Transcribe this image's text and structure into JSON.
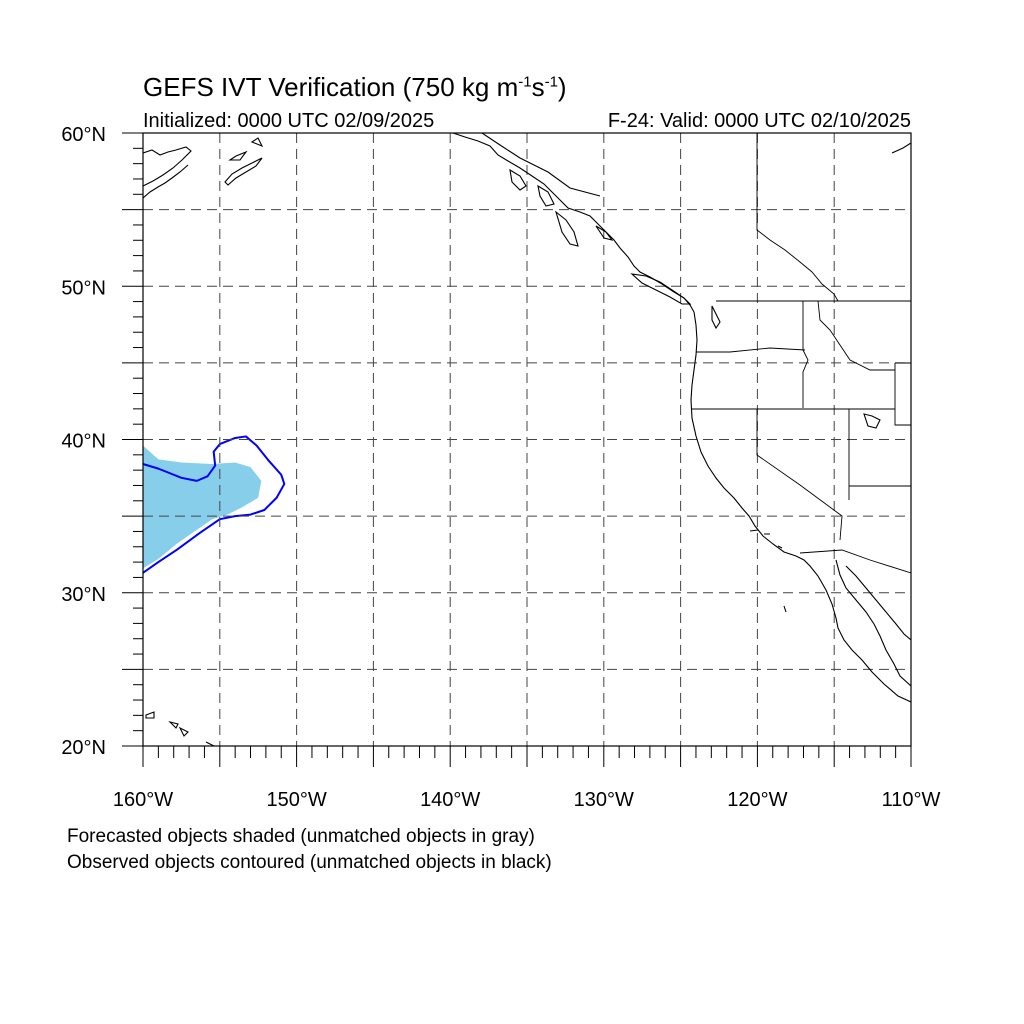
{
  "title": {
    "prefix": "GEFS IVT Verification (750 kg m",
    "sup1": "-1",
    "mid": "s",
    "sup2": "-1",
    "suffix": ")"
  },
  "initialized": "Initialized: 0000 UTC 02/09/2025",
  "valid": "F-24: Valid: 0000 UTC 02/10/2025",
  "notes": [
    "Forecasted objects shaded (unmatched objects in gray)",
    "Observed objects contoured (unmatched objects in black)"
  ],
  "map": {
    "lon_range": [
      -160,
      -110
    ],
    "lat_range": [
      20,
      60
    ],
    "grid": "dashed every 5 degrees",
    "lon_labels": [
      "160°W",
      "150°W",
      "140°W",
      "130°W",
      "120°W",
      "110°W"
    ],
    "lat_labels": [
      "60°N",
      "50°N",
      "40°N",
      "30°N",
      "20°N"
    ],
    "colors": {
      "forecast_fill": "#87ceeb",
      "forecast_light": "#add8e6",
      "observed_contour": "#0000ff",
      "coastline": "#000000",
      "grid": "#444444"
    },
    "forecast_object": {
      "label": "forecast IVT object (matched)",
      "polygon_lonlat": [
        [
          -160,
          39.6
        ],
        [
          -159,
          38.7
        ],
        [
          -157.5,
          38.5
        ],
        [
          -155.5,
          38.4
        ],
        [
          -154,
          38.5
        ],
        [
          -153,
          38.2
        ],
        [
          -152.3,
          37.3
        ],
        [
          -152.5,
          36.2
        ],
        [
          -153.5,
          35.6
        ],
        [
          -154.5,
          35.1
        ],
        [
          -155.5,
          34.8
        ],
        [
          -156.5,
          34.1
        ],
        [
          -157.8,
          33.2
        ],
        [
          -159,
          32.2
        ],
        [
          -160,
          31.6
        ]
      ]
    },
    "observed_object": {
      "label": "observed IVT contour (matched)",
      "polyline_lonlat": [
        [
          -160,
          38.4
        ],
        [
          -159,
          38.1
        ],
        [
          -157.5,
          37.5
        ],
        [
          -156.5,
          37.3
        ],
        [
          -155.8,
          37.6
        ],
        [
          -155.3,
          38.3
        ],
        [
          -155.4,
          39.2
        ],
        [
          -155,
          39.7
        ],
        [
          -154,
          40.1
        ],
        [
          -153.3,
          40.2
        ],
        [
          -152.6,
          39.6
        ],
        [
          -151.8,
          38.6
        ],
        [
          -151,
          37.7
        ],
        [
          -150.8,
          37.1
        ],
        [
          -151.3,
          36.2
        ],
        [
          -152.1,
          35.4
        ],
        [
          -153,
          35.1
        ],
        [
          -154,
          35
        ],
        [
          -155,
          34.8
        ],
        [
          -156.3,
          33.9
        ],
        [
          -157.8,
          32.8
        ],
        [
          -159,
          32
        ],
        [
          -160,
          31.3
        ]
      ]
    }
  }
}
